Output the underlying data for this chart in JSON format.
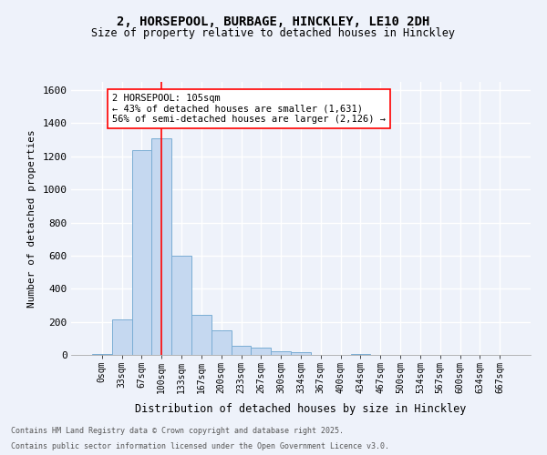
{
  "title_line1": "2, HORSEPOOL, BURBAGE, HINCKLEY, LE10 2DH",
  "title_line2": "Size of property relative to detached houses in Hinckley",
  "xlabel": "Distribution of detached houses by size in Hinckley",
  "ylabel": "Number of detached properties",
  "footer_line1": "Contains HM Land Registry data © Crown copyright and database right 2025.",
  "footer_line2": "Contains public sector information licensed under the Open Government Licence v3.0.",
  "categories": [
    "0sqm",
    "33sqm",
    "67sqm",
    "100sqm",
    "133sqm",
    "167sqm",
    "200sqm",
    "233sqm",
    "267sqm",
    "300sqm",
    "334sqm",
    "367sqm",
    "400sqm",
    "434sqm",
    "467sqm",
    "500sqm",
    "534sqm",
    "567sqm",
    "600sqm",
    "634sqm",
    "667sqm"
  ],
  "values": [
    5,
    215,
    1240,
    1310,
    600,
    240,
    150,
    55,
    45,
    20,
    15,
    0,
    0,
    3,
    0,
    0,
    0,
    0,
    0,
    0,
    0
  ],
  "bar_color": "#c5d8f0",
  "bar_edge_color": "#7aadd4",
  "red_line_bin": 3,
  "annotation_text": "2 HORSEPOOL: 105sqm\n← 43% of detached houses are smaller (1,631)\n56% of semi-detached houses are larger (2,126) →",
  "ylim": [
    0,
    1650
  ],
  "background_color": "#eef2fa",
  "grid_color": "#ffffff",
  "yticks": [
    0,
    200,
    400,
    600,
    800,
    1000,
    1200,
    1400,
    1600
  ]
}
